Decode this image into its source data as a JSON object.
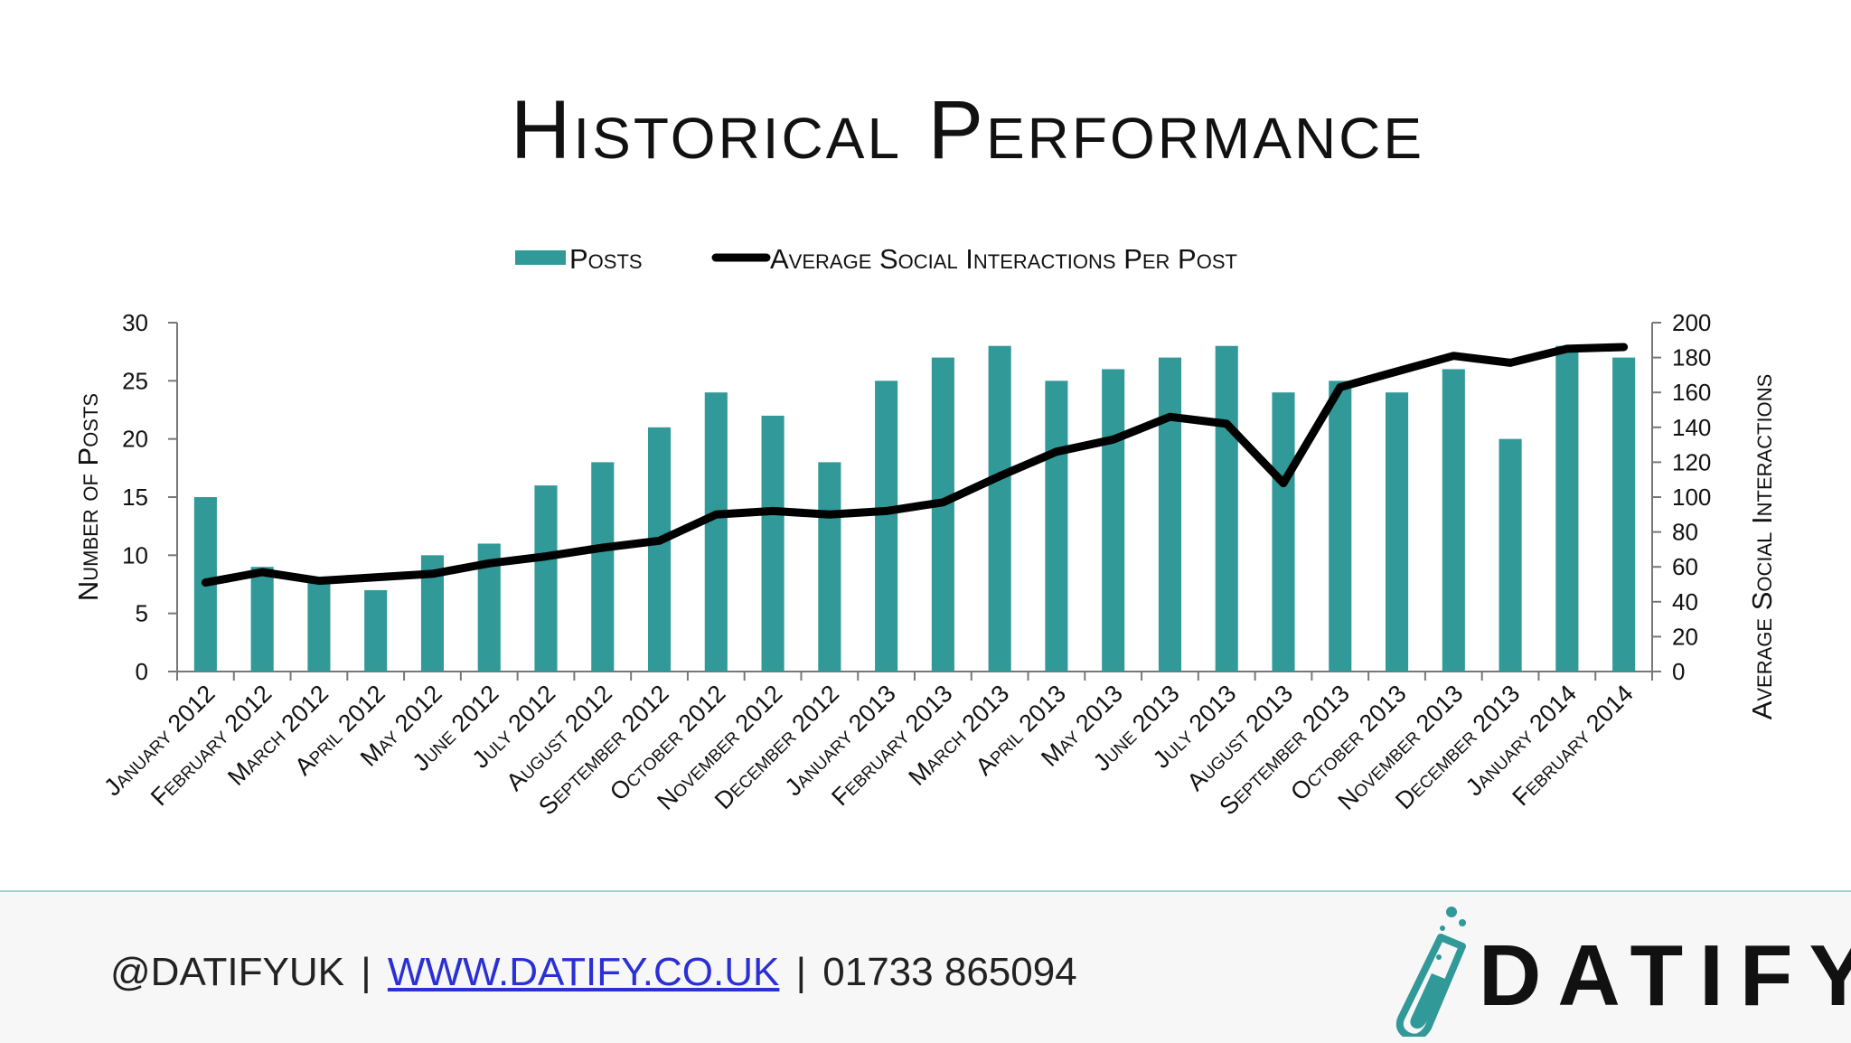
{
  "title": "Historical Performance",
  "chart_data": {
    "type": "bar+line",
    "title": "Historical Performance",
    "categories": [
      "January 2012",
      "February 2012",
      "March 2012",
      "April 2012",
      "May 2012",
      "June 2012",
      "July 2012",
      "August 2012",
      "September 2012",
      "October 2012",
      "November 2012",
      "December 2012",
      "January 2013",
      "February 2013",
      "March 2013",
      "April 2013",
      "May 2013",
      "June 2013",
      "July 2013",
      "August 2013",
      "September 2013",
      "October 2013",
      "November 2013",
      "December 2013",
      "January 2014",
      "February 2014"
    ],
    "series": [
      {
        "name": "Posts",
        "type": "bar",
        "axis": "left",
        "color": "#329999",
        "values": [
          15,
          9,
          8,
          7,
          10,
          11,
          16,
          18,
          21,
          24,
          22,
          18,
          25,
          27,
          28,
          25,
          26,
          27,
          28,
          24,
          25,
          24,
          26,
          20,
          28,
          27
        ]
      },
      {
        "name": "Average Social Interactions Per Post",
        "type": "line",
        "axis": "right",
        "color": "#000000",
        "values": [
          51,
          57,
          52,
          54,
          56,
          62,
          66,
          71,
          75,
          90,
          92,
          90,
          92,
          97,
          112,
          126,
          133,
          146,
          142,
          108,
          163,
          172,
          181,
          177,
          185,
          186
        ]
      }
    ],
    "ylabel": "Number of Posts",
    "y2label": "Average Social Interactions",
    "ylim": [
      0,
      30
    ],
    "y2lim": [
      0,
      200
    ],
    "yticks": [
      "0",
      "5",
      "10",
      "15",
      "20",
      "25",
      "30"
    ],
    "y2ticks": [
      "0",
      "20",
      "40",
      "60",
      "80",
      "100",
      "120",
      "140",
      "160",
      "180",
      "200"
    ],
    "legend_position": "top",
    "grid": false
  },
  "footer": {
    "handle": "@DATIFYUK",
    "website": "WWW.DATIFY.CO.UK",
    "phone": "01733 865094",
    "separator": "|",
    "logo_text": "DATIFY"
  }
}
